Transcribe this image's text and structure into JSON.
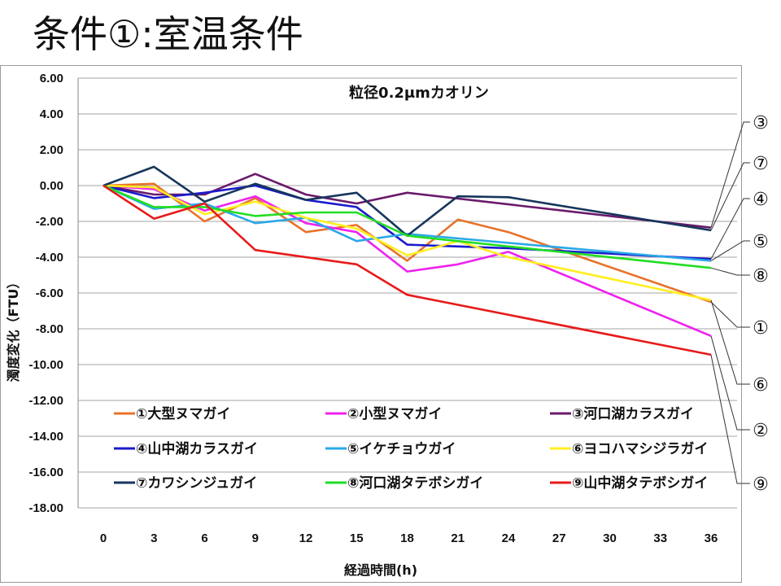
{
  "page_title": "条件①:室温条件",
  "chart_data": {
    "type": "line",
    "title": "粒径0.2μmカオリン",
    "xlabel": "経過時間(h)",
    "ylabel": "濁度変化（FTU）",
    "x": [
      0,
      3,
      6,
      9,
      12,
      15,
      18,
      21,
      24,
      27,
      30,
      33,
      36
    ],
    "x_ticks": [
      "0",
      "3",
      "6",
      "9",
      "12",
      "15",
      "18",
      "21",
      "24",
      "27",
      "30",
      "33",
      "36"
    ],
    "ylim": [
      -18,
      6
    ],
    "y_ticks": [
      "6.00",
      "4.00",
      "2.00",
      "0.00",
      "-2.00",
      "-4.00",
      "-6.00",
      "-8.00",
      "-10.00",
      "-12.00",
      "-14.00",
      "-16.00",
      "-18.00"
    ],
    "grid": true,
    "legend_position": "bottom-inside",
    "series": [
      {
        "name": "①大型ヌマガイ",
        "color": "#e8722a",
        "x": [
          0,
          3,
          6,
          9,
          12,
          15,
          18,
          21,
          24,
          36
        ],
        "values": [
          0,
          0.1,
          -2.0,
          -0.7,
          -2.6,
          -2.2,
          -4.2,
          -1.9,
          -2.6,
          -6.5
        ],
        "callout": "①"
      },
      {
        "name": "②小型ヌマガイ",
        "color": "#ee22ee",
        "x": [
          0,
          3,
          6,
          9,
          12,
          15,
          18,
          21,
          24,
          36
        ],
        "values": [
          0,
          -0.2,
          -1.4,
          -0.6,
          -2.1,
          -2.6,
          -4.8,
          -4.4,
          -3.7,
          -8.4
        ],
        "callout": "②"
      },
      {
        "name": "③河口湖カラスガイ",
        "color": "#6a1a6a",
        "x": [
          0,
          3,
          6,
          9,
          12,
          15,
          18,
          36
        ],
        "values": [
          0,
          -0.5,
          -0.5,
          0.65,
          -0.5,
          -1.0,
          -0.4,
          -2.35
        ],
        "callout": "③"
      },
      {
        "name": "④山中湖カラスガイ",
        "color": "#1a1acc",
        "x": [
          0,
          3,
          6,
          9,
          12,
          15,
          18,
          21,
          24,
          36
        ],
        "values": [
          0,
          -0.7,
          -0.4,
          0.0,
          -0.8,
          -1.2,
          -3.3,
          -3.4,
          -3.5,
          -4.1
        ],
        "callout": "④"
      },
      {
        "name": "⑤イケチョウガイ",
        "color": "#2aa8e6",
        "x": [
          0,
          3,
          6,
          9,
          12,
          15,
          18,
          36
        ],
        "values": [
          0,
          -1.3,
          -1.0,
          -2.1,
          -1.8,
          -3.1,
          -2.7,
          -4.2
        ],
        "callout": "⑤"
      },
      {
        "name": "⑥ヨコハマシジラガイ",
        "color": "#ffee22",
        "x": [
          0,
          3,
          6,
          9,
          12,
          15,
          18,
          21,
          24,
          36
        ],
        "values": [
          0,
          -0.1,
          -1.6,
          -0.9,
          -1.8,
          -2.4,
          -3.9,
          -3.1,
          -4.0,
          -6.4
        ],
        "callout": "⑥"
      },
      {
        "name": "⑦カワシンジュガイ",
        "color": "#16365c",
        "x": [
          0,
          3,
          6,
          9,
          12,
          15,
          18,
          21,
          24,
          36
        ],
        "values": [
          0,
          1.05,
          -0.9,
          0.1,
          -0.8,
          -0.4,
          -2.8,
          -0.6,
          -0.65,
          -2.5
        ],
        "callout": "⑦"
      },
      {
        "name": "⑧河口湖タテボシガイ",
        "color": "#22dd22",
        "x": [
          0,
          3,
          6,
          9,
          12,
          15,
          18,
          36
        ],
        "values": [
          0,
          -1.2,
          -1.2,
          -1.7,
          -1.5,
          -1.5,
          -2.8,
          -4.6
        ],
        "callout": "⑧"
      },
      {
        "name": "⑨山中湖タテボシガイ",
        "color": "#e81a1a",
        "x": [
          0,
          3,
          6,
          9,
          15,
          18,
          36
        ],
        "values": [
          0,
          -1.85,
          -1.0,
          -3.6,
          -4.4,
          -6.1,
          -9.45
        ],
        "callout": "⑨"
      }
    ]
  }
}
